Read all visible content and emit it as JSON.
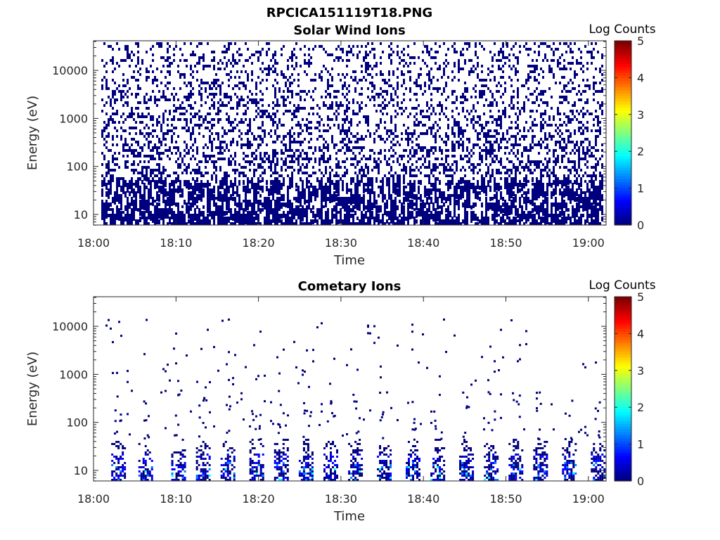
{
  "figure_title": "RPCICA151119T18.PNG",
  "chart_data": [
    {
      "type": "heatmap",
      "title": "Solar Wind Ions",
      "xlabel": "Time",
      "ylabel": "Energy (eV)",
      "x_ticks": [
        "18:00",
        "18:10",
        "18:20",
        "18:30",
        "18:40",
        "18:50",
        "19:00"
      ],
      "y_ticks": [
        "10",
        "100",
        "1000",
        "10000"
      ],
      "y_scale": "log",
      "colorbar_label": "Log Counts",
      "colorbar_ticks": [
        "0",
        "1",
        "2",
        "3",
        "4",
        "5"
      ],
      "clim": [
        0,
        5
      ],
      "description_pattern": "sparse",
      "colormap": [
        "#00007f",
        "#0000ff",
        "#007fff",
        "#00ffff",
        "#7fff7f",
        "#ffff00",
        "#ff7f00",
        "#ff0000",
        "#7f0000"
      ]
    },
    {
      "type": "heatmap",
      "title": "Cometary Ions",
      "xlabel": "Time",
      "ylabel": "Energy (eV)",
      "x_ticks": [
        "18:00",
        "18:10",
        "18:20",
        "18:30",
        "18:40",
        "18:50",
        "19:00"
      ],
      "y_ticks": [
        "10",
        "100",
        "1000",
        "10000"
      ],
      "y_scale": "log",
      "colorbar_label": "Log Counts",
      "colorbar_ticks": [
        "0",
        "1",
        "2",
        "3",
        "4",
        "5"
      ],
      "clim": [
        0,
        5
      ],
      "burst_minutes": [
        2.2,
        5.5,
        9.5,
        12.5,
        15.5,
        19.0,
        22.0,
        25.0,
        28.0,
        31.0,
        34.5,
        38.0,
        41.0,
        44.5,
        47.5,
        50.5,
        53.5,
        57.0,
        60.5
      ],
      "colormap": [
        "#00007f",
        "#0000ff",
        "#007fff",
        "#00ffff",
        "#7fff7f",
        "#ffff00",
        "#ff7f00",
        "#ff0000",
        "#7f0000"
      ]
    }
  ]
}
